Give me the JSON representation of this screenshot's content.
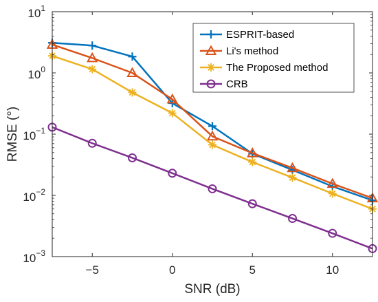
{
  "chart_data": {
    "type": "line",
    "xlabel": "SNR (dB)",
    "ylabel": "RMSE (°)",
    "xlim": [
      -7.5,
      12.5
    ],
    "ylim": [
      0.001,
      10
    ],
    "yscale": "log",
    "grid": false,
    "legend_position": "top-right",
    "x_ticks": [
      -5,
      0,
      5,
      10
    ],
    "x_tick_labels": [
      "−5",
      "0",
      "5",
      "10"
    ],
    "y_ticks": [
      0.001,
      0.01,
      0.1,
      1,
      10
    ],
    "y_tick_base": "10",
    "y_tick_exponents": [
      "−3",
      "−2",
      "−1",
      "0",
      "1"
    ],
    "x": [
      -7.5,
      -5,
      -2.5,
      0,
      2.5,
      5,
      7.5,
      10,
      12.5
    ],
    "series": [
      {
        "name": "ESPRIT-based",
        "color": "#0072BD",
        "marker": "plus",
        "values": [
          3.1,
          2.8,
          1.85,
          0.32,
          0.135,
          0.048,
          0.026,
          0.014,
          0.0083
        ]
      },
      {
        "name": "Li's method",
        "color": "#D95319",
        "marker": "triangle",
        "values": [
          2.9,
          1.75,
          1.0,
          0.37,
          0.092,
          0.049,
          0.028,
          0.0155,
          0.009
        ]
      },
      {
        "name": "The Proposed method",
        "color": "#EDB120",
        "marker": "asterisk",
        "values": [
          1.9,
          1.15,
          0.48,
          0.22,
          0.067,
          0.035,
          0.0195,
          0.0107,
          0.006
        ]
      },
      {
        "name": "CRB",
        "color": "#7E2F8E",
        "marker": "circle",
        "values": [
          0.13,
          0.071,
          0.041,
          0.023,
          0.0128,
          0.0073,
          0.0042,
          0.0024,
          0.00135
        ]
      }
    ]
  }
}
